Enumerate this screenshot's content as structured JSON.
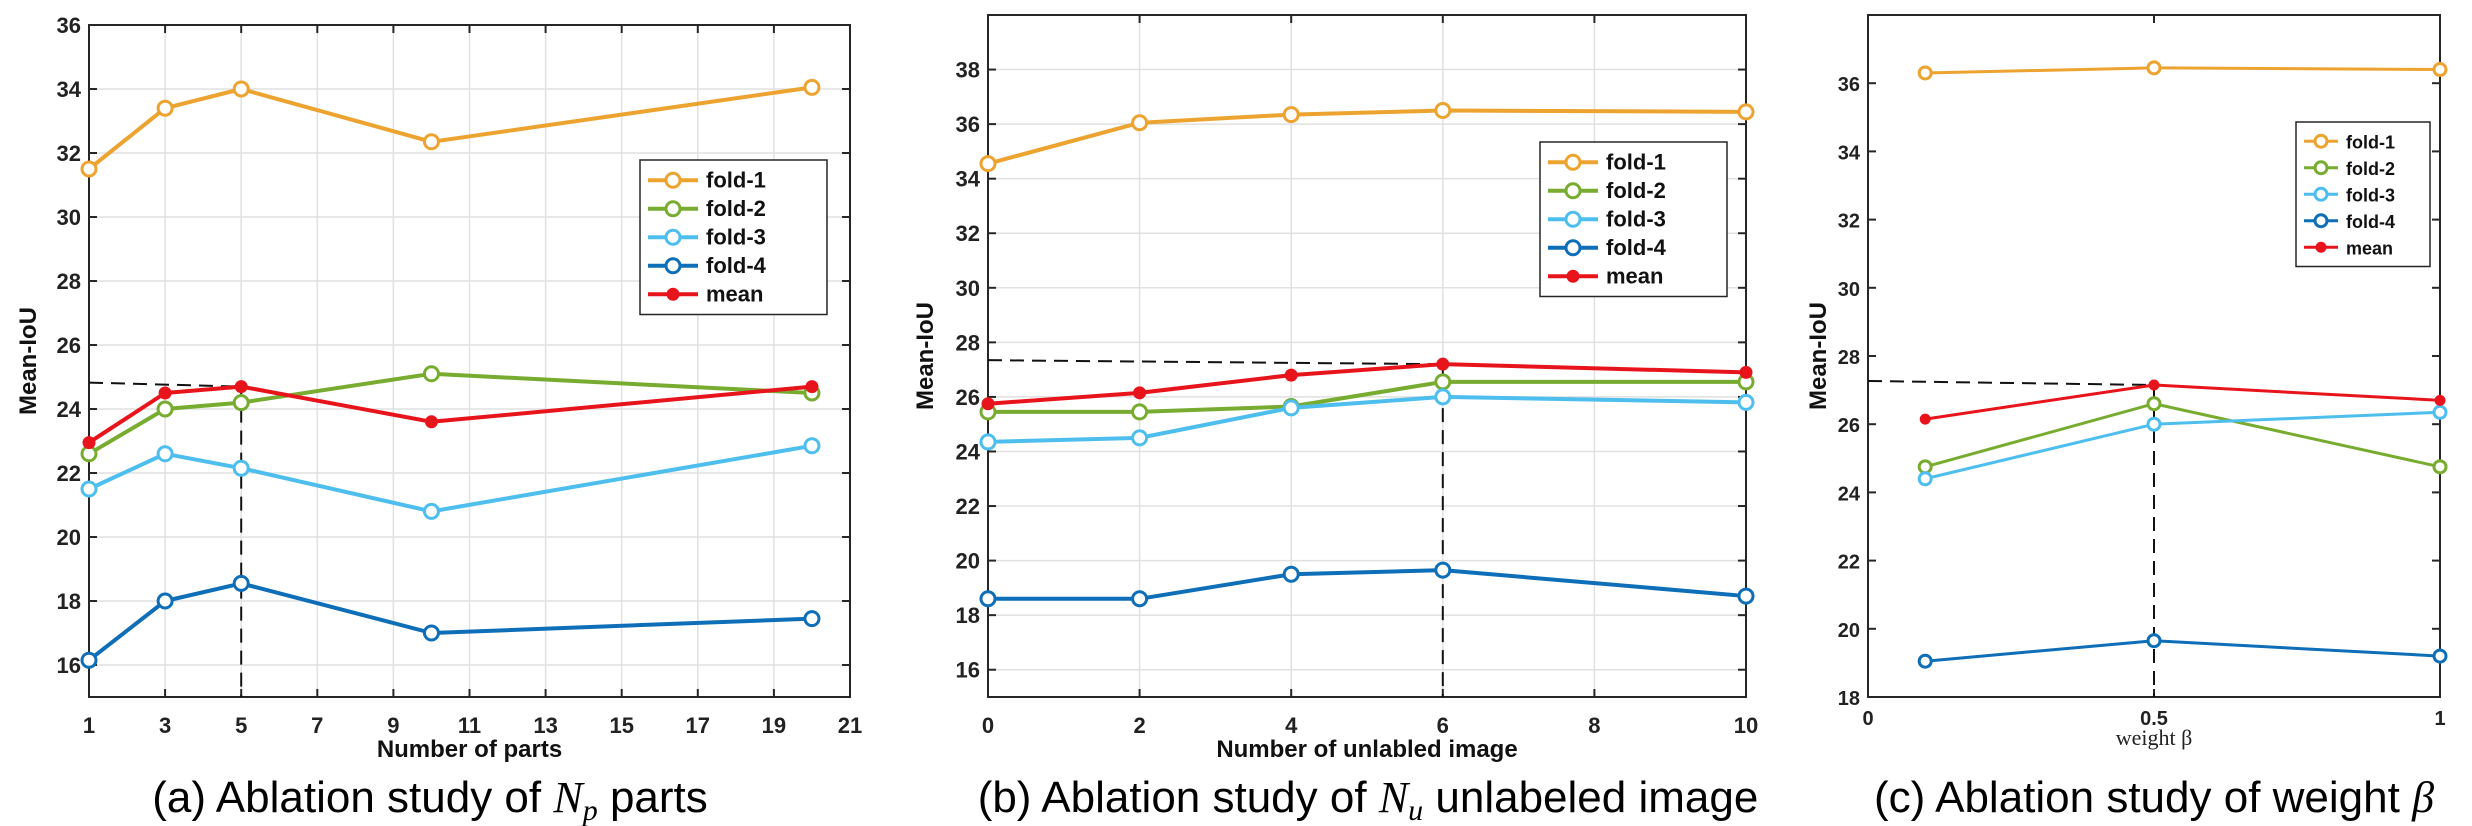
{
  "colors": {
    "fold-1": "#EDA330",
    "fold-2": "#77AC30",
    "fold-3": "#4DBEEE",
    "fold-4": "#0E6EB8",
    "mean": "#E8141C"
  },
  "chart_data": [
    {
      "type": "line",
      "caption_prefix": "(a) Ablation study of ",
      "caption_var": "N",
      "caption_sub": "p",
      "caption_suffix": " parts",
      "xlabel": "Number of parts",
      "ylabel": "Mean-IoU",
      "xlim": [
        1,
        21
      ],
      "ylim": [
        15,
        36
      ],
      "xticks": [
        1,
        3,
        5,
        7,
        9,
        11,
        13,
        15,
        17,
        19,
        21
      ],
      "yticks": [
        16,
        18,
        20,
        22,
        24,
        26,
        28,
        30,
        32,
        34,
        36
      ],
      "grid": true,
      "legend_position": "center-right",
      "x": [
        1,
        3,
        5,
        10,
        20
      ],
      "series": [
        {
          "name": "fold-1",
          "values": [
            31.5,
            33.4,
            34.0,
            32.35,
            34.05
          ]
        },
        {
          "name": "fold-2",
          "values": [
            22.6,
            24.0,
            24.2,
            25.1,
            24.5
          ]
        },
        {
          "name": "fold-3",
          "values": [
            21.5,
            22.6,
            22.15,
            20.8,
            22.85
          ]
        },
        {
          "name": "fold-4",
          "values": [
            16.15,
            18.0,
            18.55,
            17.0,
            17.45
          ]
        },
        {
          "name": "mean",
          "values": [
            22.95,
            24.5,
            24.7,
            23.6,
            24.7
          ]
        }
      ],
      "reference": {
        "x": 5,
        "y": 24.7
      }
    },
    {
      "type": "line",
      "caption_prefix": "(b) Ablation study of ",
      "caption_var": "N",
      "caption_sub": "u",
      "caption_suffix": " unlabeled image",
      "xlabel": "Number of unlabled image",
      "ylabel": "Mean-IoU",
      "xlim": [
        0,
        10
      ],
      "ylim": [
        15,
        40
      ],
      "xticks": [
        0,
        2,
        4,
        6,
        8,
        10
      ],
      "yticks": [
        16,
        18,
        20,
        22,
        24,
        26,
        28,
        30,
        32,
        34,
        36,
        38
      ],
      "grid": true,
      "legend_position": "center-right",
      "x": [
        0,
        2,
        4,
        6,
        10
      ],
      "series": [
        {
          "name": "fold-1",
          "values": [
            34.55,
            36.05,
            36.35,
            36.5,
            36.45
          ]
        },
        {
          "name": "fold-2",
          "values": [
            25.45,
            25.45,
            25.65,
            26.55,
            26.55
          ]
        },
        {
          "name": "fold-3",
          "values": [
            24.35,
            24.5,
            25.6,
            26.0,
            25.8
          ]
        },
        {
          "name": "fold-4",
          "values": [
            18.6,
            18.6,
            19.5,
            19.65,
            18.7
          ]
        },
        {
          "name": "mean",
          "values": [
            25.75,
            26.15,
            26.8,
            27.2,
            26.9
          ]
        }
      ],
      "reference": {
        "x": 6,
        "y": 27.2
      }
    },
    {
      "type": "line",
      "caption_prefix": "(c) Ablation study of weight ",
      "caption_var": "β",
      "caption_sub": "",
      "caption_suffix": "",
      "xlabel": "weight β",
      "ylabel": "Mean-IoU",
      "xlim": [
        0,
        1
      ],
      "ylim": [
        18,
        38
      ],
      "xticks": [
        0,
        0.5,
        1
      ],
      "yticks": [
        18,
        20,
        22,
        24,
        26,
        28,
        30,
        32,
        34,
        36
      ],
      "grid": false,
      "legend_position": "top-right",
      "x": [
        0.1,
        0.5,
        1.0
      ],
      "series": [
        {
          "name": "fold-1",
          "values": [
            36.3,
            36.45,
            36.4
          ]
        },
        {
          "name": "fold-2",
          "values": [
            24.75,
            26.6,
            24.75
          ]
        },
        {
          "name": "fold-3",
          "values": [
            24.4,
            26.0,
            26.35
          ]
        },
        {
          "name": "fold-4",
          "values": [
            19.05,
            19.65,
            19.2
          ]
        },
        {
          "name": "mean",
          "values": [
            26.15,
            27.15,
            26.7
          ]
        }
      ],
      "reference": {
        "x": 0.5,
        "y": 27.15
      }
    }
  ]
}
